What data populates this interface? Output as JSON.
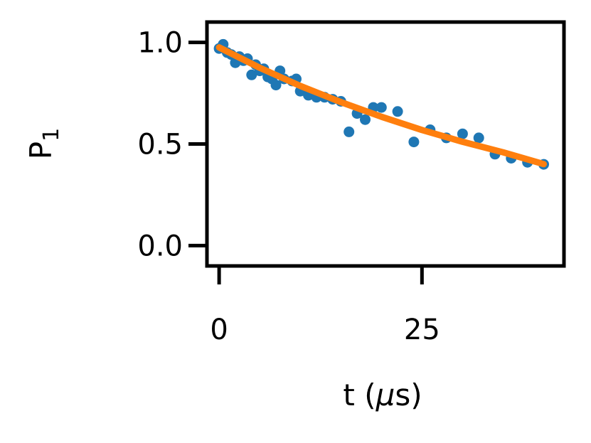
{
  "chart_data": {
    "type": "scatter",
    "title": "",
    "xlabel_parts": [
      "t (",
      "μ",
      "s)"
    ],
    "ylabel_parts": [
      "P",
      "1"
    ],
    "xlim": [
      -1.5,
      42.5
    ],
    "ylim": [
      -0.1,
      1.1
    ],
    "xticks": [
      0,
      25
    ],
    "xtick_labels": [
      "0",
      "25"
    ],
    "yticks": [
      0.0,
      0.5,
      1.0
    ],
    "ytick_labels": [
      "0.0",
      "0.5",
      "1.0"
    ],
    "grid": false,
    "legend": "none",
    "series": [
      {
        "kind": "points",
        "color": "#1f77b4",
        "x": [
          0,
          0.5,
          1,
          1.5,
          2,
          2.5,
          3,
          3.5,
          4,
          4.5,
          5,
          5.5,
          6,
          6.5,
          7,
          7.5,
          8,
          9,
          9.5,
          10,
          11,
          12,
          13,
          14,
          15,
          16,
          17,
          18,
          19,
          20,
          22,
          24,
          26,
          28,
          30,
          32,
          34,
          36,
          38,
          40
        ],
        "y": [
          0.97,
          0.99,
          0.95,
          0.94,
          0.9,
          0.93,
          0.91,
          0.92,
          0.84,
          0.89,
          0.86,
          0.87,
          0.83,
          0.82,
          0.79,
          0.86,
          0.82,
          0.81,
          0.82,
          0.76,
          0.74,
          0.73,
          0.73,
          0.72,
          0.71,
          0.56,
          0.65,
          0.62,
          0.68,
          0.68,
          0.66,
          0.51,
          0.57,
          0.53,
          0.55,
          0.53,
          0.45,
          0.43,
          0.41,
          0.4
        ]
      },
      {
        "kind": "fit",
        "color": "#ff7f0e",
        "x": [
          0,
          5,
          10,
          15,
          20,
          25,
          30,
          35,
          40
        ],
        "y": [
          0.975,
          0.875,
          0.786,
          0.706,
          0.634,
          0.569,
          0.511,
          0.459,
          0.401
        ]
      }
    ]
  }
}
